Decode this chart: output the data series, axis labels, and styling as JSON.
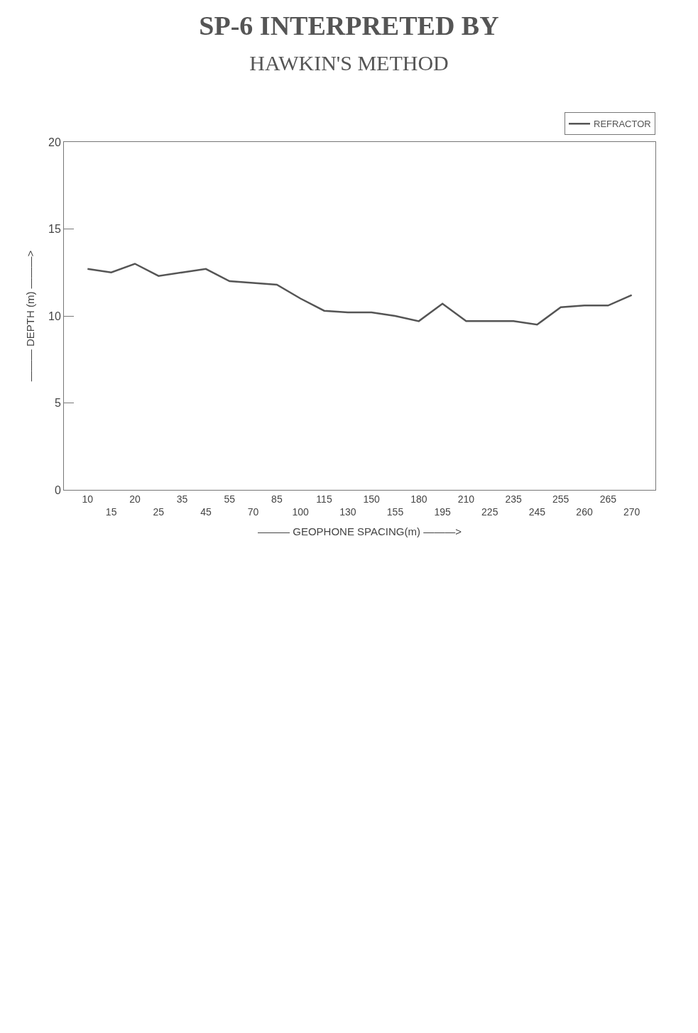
{
  "chart_data": {
    "type": "line",
    "title": "SP-6 INTERPRETED BY",
    "subtitle": "HAWKIN'S METHOD",
    "xlabel": "——— GEOPHONE SPACING(m) ———>",
    "ylabel": "——— DEPTH (m) ———>",
    "categories": [
      "10",
      "15",
      "20",
      "25",
      "35",
      "45",
      "55",
      "70",
      "85",
      "100",
      "115",
      "130",
      "150",
      "155",
      "180",
      "195",
      "210",
      "225",
      "235",
      "245",
      "255",
      "260",
      "265",
      "270"
    ],
    "series": [
      {
        "name": "REFRACTOR",
        "color": "#555555",
        "values": [
          12.7,
          12.5,
          13.0,
          12.3,
          12.5,
          12.7,
          12.0,
          11.9,
          11.8,
          11.0,
          10.3,
          10.2,
          10.2,
          10.0,
          9.7,
          10.7,
          9.7,
          9.7,
          9.7,
          9.5,
          10.5,
          10.6,
          10.6,
          11.2
        ]
      }
    ],
    "ylim": [
      0,
      20
    ],
    "yticks": [
      0,
      5,
      10,
      15,
      20
    ],
    "legend": "top right",
    "marker": "none",
    "line_style": "solid"
  }
}
